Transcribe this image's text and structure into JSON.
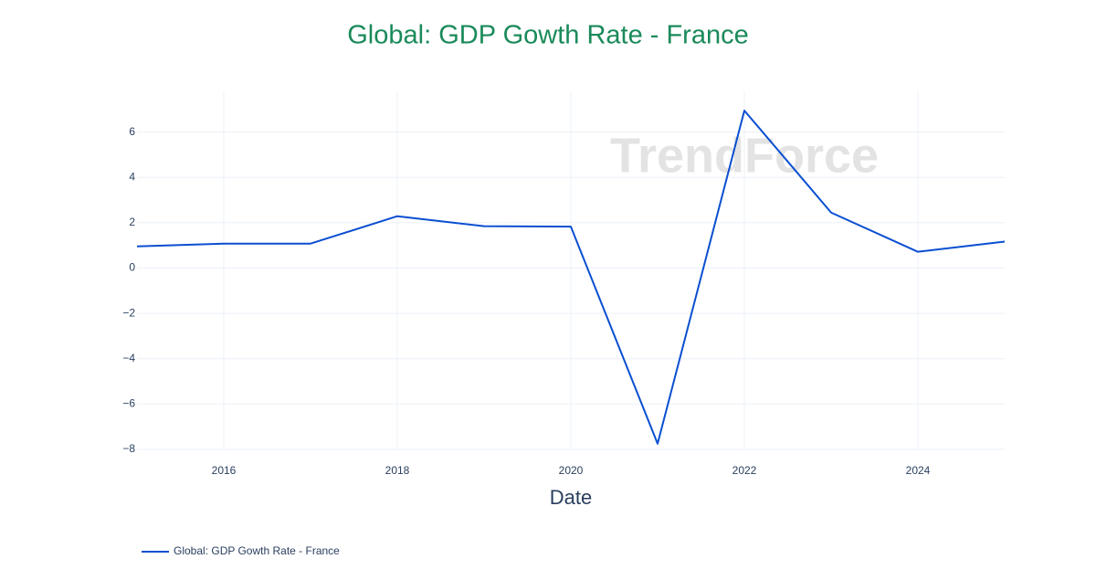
{
  "chart_data": {
    "type": "line",
    "title": "Global: GDP Gowth Rate - France",
    "x_label": "Date",
    "watermark": "TrendForce",
    "x": [
      2015,
      2016,
      2017,
      2018,
      2019,
      2020,
      2021,
      2022,
      2023,
      2024,
      2025
    ],
    "series": [
      {
        "name": "Global: GDP Gowth Rate - France",
        "color": "#0a4fd1",
        "values": [
          0.96,
          1.08,
          1.08,
          2.29,
          1.85,
          1.83,
          -7.75,
          6.95,
          2.45,
          0.72,
          1.17
        ]
      }
    ],
    "xlim": [
      2015,
      2025
    ],
    "xticks": [
      2016,
      2018,
      2020,
      2022,
      2024
    ],
    "ylim": [
      -8,
      7.8
    ],
    "yticks": [
      {
        "value": -8,
        "label": "−8"
      },
      {
        "value": -6,
        "label": "−6"
      },
      {
        "value": -4,
        "label": "−4"
      },
      {
        "value": -2,
        "label": "−2"
      },
      0,
      2,
      4,
      6
    ],
    "grid": true,
    "legend": "bottom-left",
    "title_color": "#1a8a5a"
  }
}
